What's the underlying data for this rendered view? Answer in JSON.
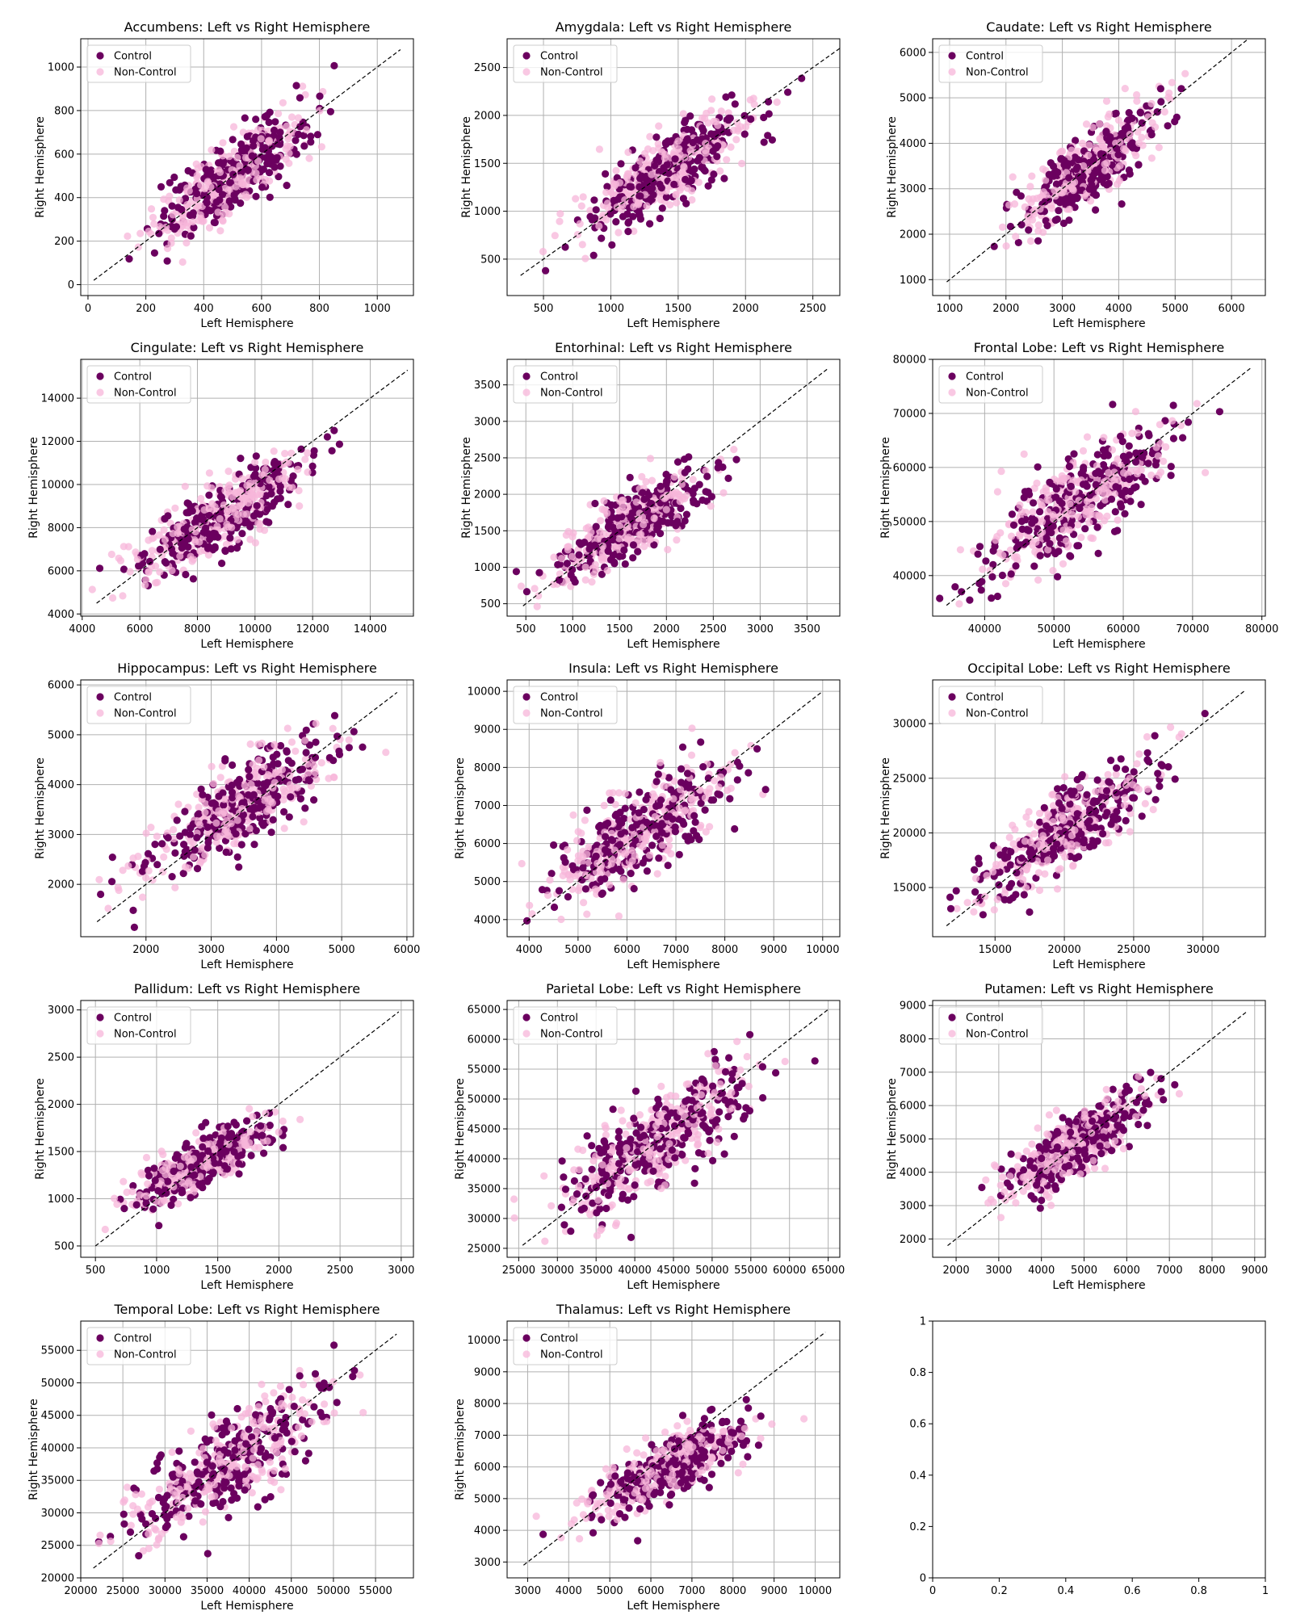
{
  "figure": {
    "legend_labels": [
      "Control",
      "Non-Control"
    ],
    "colors": {
      "control": "#6b005f",
      "noncontrol": "#f7b6d9",
      "grid": "#b0b0b0",
      "diagonal": "#000000"
    }
  },
  "chart_data": [
    {
      "type": "scatter",
      "title": "Accumbens: Left vs Right Hemisphere",
      "xlabel": "Left Hemisphere",
      "ylabel": "Right Hemisphere",
      "xlim": [
        -25,
        1125
      ],
      "ylim": [
        -50,
        1130
      ],
      "xticks": [
        0,
        200,
        400,
        600,
        800,
        1000
      ],
      "yticks": [
        0,
        200,
        400,
        600,
        800,
        1000
      ],
      "diag": [
        20,
        1080
      ],
      "cx": 500,
      "cy": 500,
      "sx": 130,
      "sy": 140,
      "legend": "top-left",
      "series": [
        {
          "name": "Control"
        },
        {
          "name": "Non-Control"
        }
      ]
    },
    {
      "type": "scatter",
      "title": "Amygdala: Left vs Right Hemisphere",
      "xlabel": "Left Hemisphere",
      "ylabel": "Right Hemisphere",
      "xlim": [
        230,
        2700
      ],
      "ylim": [
        120,
        2800
      ],
      "xticks": [
        500,
        1000,
        1500,
        2000,
        2500
      ],
      "yticks": [
        500,
        1000,
        1500,
        2000,
        2500
      ],
      "diag": [
        330,
        2700
      ],
      "cx": 1450,
      "cy": 1450,
      "sx": 300,
      "sy": 320,
      "legend": "top-left",
      "series": [
        {
          "name": "Control"
        },
        {
          "name": "Non-Control"
        }
      ]
    },
    {
      "type": "scatter",
      "title": "Caudate: Left vs Right Hemisphere",
      "xlabel": "Left Hemisphere",
      "ylabel": "Right Hemisphere",
      "xlim": [
        700,
        6600
      ],
      "ylim": [
        650,
        6300
      ],
      "xticks": [
        1000,
        2000,
        3000,
        4000,
        5000,
        6000
      ],
      "yticks": [
        1000,
        2000,
        3000,
        4000,
        5000,
        6000
      ],
      "diag": [
        950,
        6300
      ],
      "cx": 3500,
      "cy": 3500,
      "sx": 600,
      "sy": 650,
      "legend": "top-left",
      "series": [
        {
          "name": "Control"
        },
        {
          "name": "Non-Control"
        }
      ]
    },
    {
      "type": "scatter",
      "title": "Cingulate: Left vs Right Hemisphere",
      "xlabel": "Left Hemisphere",
      "ylabel": "Right Hemisphere",
      "xlim": [
        3950,
        15500
      ],
      "ylim": [
        3900,
        15800
      ],
      "xticks": [
        4000,
        6000,
        8000,
        10000,
        12000,
        14000
      ],
      "yticks": [
        4000,
        6000,
        8000,
        10000,
        12000,
        14000
      ],
      "diag": [
        4500,
        15300
      ],
      "cx": 9000,
      "cy": 8700,
      "sx": 1500,
      "sy": 1400,
      "legend": "top-left",
      "series": [
        {
          "name": "Control"
        },
        {
          "name": "Non-Control"
        }
      ]
    },
    {
      "type": "scatter",
      "title": "Entorhinal: Left vs Right Hemisphere",
      "xlabel": "Left Hemisphere",
      "ylabel": "Right Hemisphere",
      "xlim": [
        300,
        3850
      ],
      "ylim": [
        330,
        3850
      ],
      "xticks": [
        500,
        1000,
        1500,
        2000,
        2500,
        3000,
        3500
      ],
      "yticks": [
        500,
        1000,
        1500,
        2000,
        2500,
        3000,
        3500
      ],
      "diag": [
        470,
        3730
      ],
      "cx": 1650,
      "cy": 1600,
      "sx": 420,
      "sy": 380,
      "legend": "top-left",
      "series": [
        {
          "name": "Control"
        },
        {
          "name": "Non-Control"
        }
      ]
    },
    {
      "type": "scatter",
      "title": "Frontal Lobe: Left vs Right Hemisphere",
      "xlabel": "Left Hemisphere",
      "ylabel": "Right Hemisphere",
      "xlim": [
        32500,
        80500
      ],
      "ylim": [
        32500,
        80000
      ],
      "xticks": [
        40000,
        50000,
        60000,
        70000,
        80000
      ],
      "yticks": [
        40000,
        50000,
        60000,
        70000,
        80000
      ],
      "diag": [
        34500,
        78500
      ],
      "cx": 54000,
      "cy": 54000,
      "sx": 7000,
      "sy": 7000,
      "legend": "top-left",
      "series": [
        {
          "name": "Control"
        },
        {
          "name": "Non-Control"
        }
      ]
    },
    {
      "type": "scatter",
      "title": "Hippocampus: Left vs Right Hemisphere",
      "xlabel": "Left Hemisphere",
      "ylabel": "Right Hemisphere",
      "xlim": [
        1000,
        6100
      ],
      "ylim": [
        950,
        6100
      ],
      "xticks": [
        2000,
        3000,
        4000,
        5000,
        6000
      ],
      "yticks": [
        2000,
        3000,
        4000,
        5000,
        6000
      ],
      "diag": [
        1250,
        5850
      ],
      "cx": 3500,
      "cy": 3600,
      "sx": 700,
      "sy": 700,
      "legend": "top-left",
      "series": [
        {
          "name": "Control"
        },
        {
          "name": "Non-Control"
        }
      ]
    },
    {
      "type": "scatter",
      "title": "Insula: Left vs Right Hemisphere",
      "xlabel": "Left Hemisphere",
      "ylabel": "Right Hemisphere",
      "xlim": [
        3550,
        10350
      ],
      "ylim": [
        3550,
        10300
      ],
      "xticks": [
        4000,
        5000,
        6000,
        7000,
        8000,
        9000,
        10000
      ],
      "yticks": [
        4000,
        5000,
        6000,
        7000,
        8000,
        9000,
        10000
      ],
      "diag": [
        3850,
        10000
      ],
      "cx": 6300,
      "cy": 6300,
      "sx": 950,
      "sy": 900,
      "legend": "top-left",
      "series": [
        {
          "name": "Control"
        },
        {
          "name": "Non-Control"
        }
      ]
    },
    {
      "type": "scatter",
      "title": "Occipital Lobe: Left vs Right Hemisphere",
      "xlabel": "Left Hemisphere",
      "ylabel": "Right Hemisphere",
      "xlim": [
        10500,
        34500
      ],
      "ylim": [
        10500,
        34000
      ],
      "xticks": [
        15000,
        20000,
        25000,
        30000
      ],
      "yticks": [
        15000,
        20000,
        25000,
        30000
      ],
      "diag": [
        11500,
        33000
      ],
      "cx": 20500,
      "cy": 20500,
      "sx": 3000,
      "sy": 3000,
      "legend": "top-left",
      "series": [
        {
          "name": "Control"
        },
        {
          "name": "Non-Control"
        }
      ]
    },
    {
      "type": "scatter",
      "title": "Pallidum: Left vs Right Hemisphere",
      "xlabel": "Left Hemisphere",
      "ylabel": "Right Hemisphere",
      "xlim": [
        380,
        3100
      ],
      "ylim": [
        380,
        3100
      ],
      "xticks": [
        500,
        1000,
        1500,
        2000,
        2500,
        3000
      ],
      "yticks": [
        500,
        1000,
        1500,
        2000,
        2500,
        3000
      ],
      "diag": [
        500,
        2980
      ],
      "cx": 1400,
      "cy": 1400,
      "sx": 280,
      "sy": 220,
      "legend": "top-left",
      "series": [
        {
          "name": "Control"
        },
        {
          "name": "Non-Control"
        }
      ]
    },
    {
      "type": "scatter",
      "title": "Parietal Lobe: Left vs Right Hemisphere",
      "xlabel": "Left Hemisphere",
      "ylabel": "Right Hemisphere",
      "xlim": [
        23500,
        66500
      ],
      "ylim": [
        23500,
        66500
      ],
      "xticks": [
        25000,
        30000,
        35000,
        40000,
        45000,
        50000,
        55000,
        60000,
        65000
      ],
      "yticks": [
        25000,
        30000,
        35000,
        40000,
        45000,
        50000,
        55000,
        60000,
        65000
      ],
      "diag": [
        25500,
        65000
      ],
      "cx": 43000,
      "cy": 43000,
      "sx": 6000,
      "sy": 6000,
      "legend": "top-left",
      "series": [
        {
          "name": "Control"
        },
        {
          "name": "Non-Control"
        }
      ]
    },
    {
      "type": "scatter",
      "title": "Putamen: Left vs Right Hemisphere",
      "xlabel": "Left Hemisphere",
      "ylabel": "Right Hemisphere",
      "xlim": [
        1450,
        9250
      ],
      "ylim": [
        1450,
        9150
      ],
      "xticks": [
        2000,
        3000,
        4000,
        5000,
        6000,
        7000,
        8000,
        9000
      ],
      "yticks": [
        2000,
        3000,
        4000,
        5000,
        6000,
        7000,
        8000,
        9000
      ],
      "diag": [
        1800,
        8800
      ],
      "cx": 4800,
      "cy": 4800,
      "sx": 800,
      "sy": 800,
      "legend": "top-left",
      "series": [
        {
          "name": "Control"
        },
        {
          "name": "Non-Control"
        }
      ]
    },
    {
      "type": "scatter",
      "title": "Temporal Lobe: Left vs Right Hemisphere",
      "xlabel": "Left Hemisphere",
      "ylabel": "Right Hemisphere",
      "xlim": [
        20000,
        59500
      ],
      "ylim": [
        20000,
        59500
      ],
      "xticks": [
        20000,
        25000,
        30000,
        35000,
        40000,
        45000,
        50000,
        55000
      ],
      "yticks": [
        20000,
        25000,
        30000,
        35000,
        40000,
        45000,
        50000,
        55000
      ],
      "diag": [
        21500,
        57500
      ],
      "cx": 38000,
      "cy": 38000,
      "sx": 6000,
      "sy": 6000,
      "legend": "top-left",
      "series": [
        {
          "name": "Control"
        },
        {
          "name": "Non-Control"
        }
      ]
    },
    {
      "type": "scatter",
      "title": "Thalamus: Left vs Right Hemisphere",
      "xlabel": "Left Hemisphere",
      "ylabel": "Right Hemisphere",
      "xlim": [
        2500,
        10600
      ],
      "ylim": [
        2500,
        10600
      ],
      "xticks": [
        3000,
        4000,
        5000,
        6000,
        7000,
        8000,
        9000,
        10000
      ],
      "yticks": [
        3000,
        4000,
        5000,
        6000,
        7000,
        8000,
        9000,
        10000
      ],
      "diag": [
        2900,
        10250
      ],
      "cx": 6500,
      "cy": 6000,
      "sx": 1000,
      "sy": 800,
      "legend": "top-left",
      "series": [
        {
          "name": "Control"
        },
        {
          "name": "Non-Control"
        }
      ]
    },
    {
      "type": "empty",
      "title": "",
      "xlabel": "",
      "ylabel": "",
      "xlim": [
        0,
        1
      ],
      "ylim": [
        0,
        1
      ],
      "xticks": [
        0.0,
        0.2,
        0.4,
        0.6,
        0.8,
        1.0
      ],
      "yticks": [
        0.0,
        0.2,
        0.4,
        0.6,
        0.8,
        1.0
      ]
    }
  ]
}
